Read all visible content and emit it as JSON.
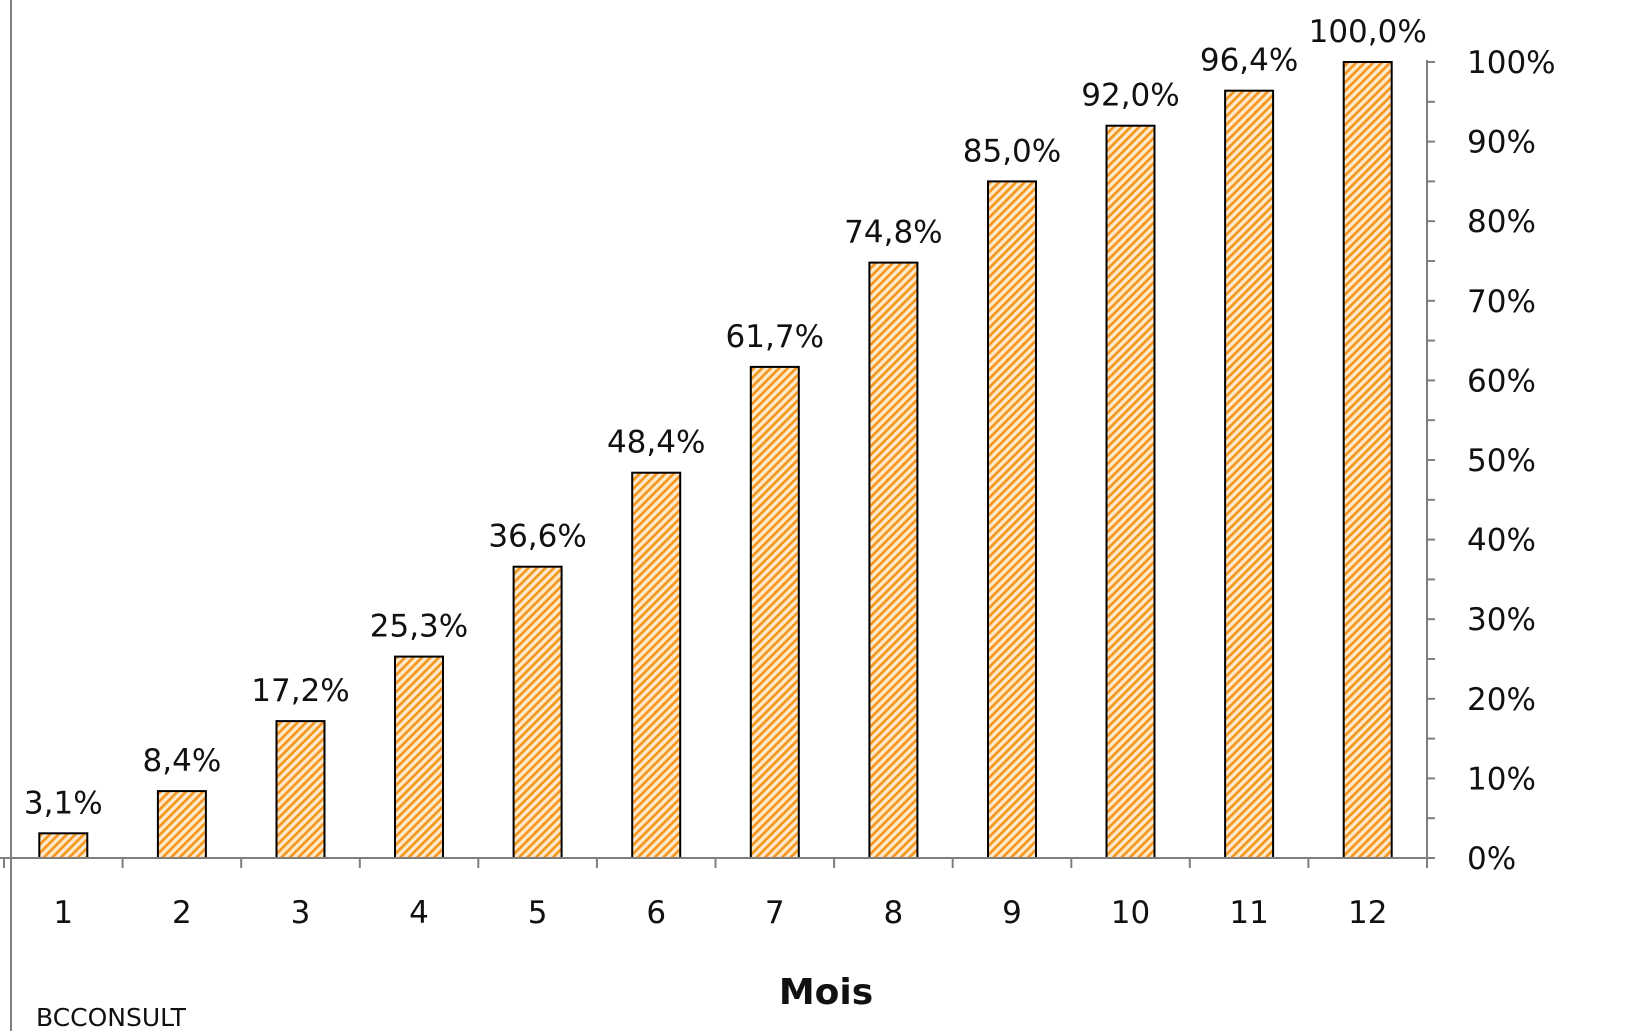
{
  "chart_data": {
    "type": "bar",
    "categories": [
      "1",
      "2",
      "3",
      "4",
      "5",
      "6",
      "7",
      "8",
      "9",
      "10",
      "11",
      "12"
    ],
    "values": [
      3.1,
      8.4,
      17.2,
      25.3,
      36.6,
      48.4,
      61.7,
      74.8,
      85.0,
      92.0,
      96.4,
      100.0
    ],
    "data_labels": [
      "3,1%",
      "8,4%",
      "17,2%",
      "25,3%",
      "36,6%",
      "48,4%",
      "61,7%",
      "74,8%",
      "85,0%",
      "92,0%",
      "96,4%",
      "100,0%"
    ],
    "xlabel": "Mois",
    "ylabel": "",
    "y_axis_side": "right",
    "ylim": [
      0,
      100
    ],
    "yticks": [
      0,
      10,
      20,
      30,
      40,
      50,
      60,
      70,
      80,
      90,
      100
    ],
    "ytick_labels": [
      "0%",
      "10%",
      "20%",
      "30%",
      "40%",
      "50%",
      "60%",
      "70%",
      "80%",
      "90%",
      "100%"
    ],
    "grid": false,
    "legend": "none",
    "bar_fill_pattern": "diagonal-hatch",
    "colors": {
      "bar_fill": "#f7941d",
      "bar_background": "#fde9c9",
      "bar_edge": "#000000",
      "axis": "#7f7f7f"
    }
  },
  "footer": {
    "credit": "BCCONSULT"
  }
}
